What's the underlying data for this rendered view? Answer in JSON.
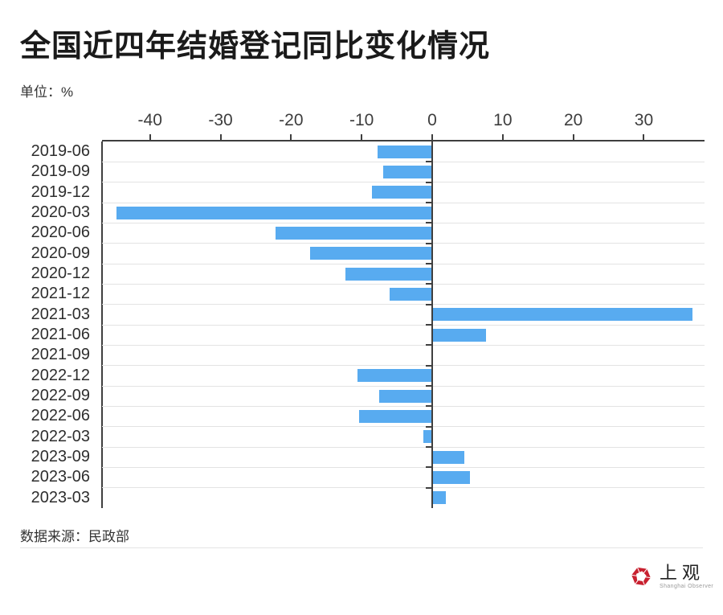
{
  "page": {
    "title": "全国近四年结婚登记同比变化情况",
    "unit_label": "单位：%",
    "source_label": "数据来源：民政部"
  },
  "logo": {
    "name_cn": "上观",
    "name_en": "Shanghai Observer",
    "brand_red": "#c8202f"
  },
  "colors": {
    "bar": "#58abf0",
    "axis": "#3f3f3f",
    "grid": "#e3e3e3",
    "title_text": "#1a1a1a",
    "body_text": "#333333"
  },
  "chart_data": {
    "type": "bar",
    "orientation": "horizontal",
    "title": "全国近四年结婚登记同比变化情况",
    "unit": "%",
    "categories": [
      "2019-06",
      "2019-09",
      "2019-12",
      "2020-03",
      "2020-06",
      "2020-09",
      "2020-12",
      "2021-12",
      "2021-03",
      "2021-06",
      "2021-09",
      "2022-12",
      "2022-09",
      "2022-06",
      "2022-03",
      "2023-09",
      "2023-06",
      "2023-03"
    ],
    "values": [
      -7.8,
      -6.9,
      -8.5,
      -44.7,
      -22.2,
      -17.3,
      -12.3,
      -6.0,
      36.9,
      7.6,
      -0.1,
      -10.6,
      -7.5,
      -10.4,
      -1.2,
      4.5,
      5.3,
      1.9
    ],
    "xlim": [
      -46.8,
      38.6
    ],
    "xticks": [
      -40,
      -30,
      -20,
      -10,
      0,
      10,
      20,
      30
    ],
    "xlabel": "",
    "ylabel": "",
    "grid": "row separators only, top axis line, dark zero baseline with stubs",
    "legend": "none",
    "bar_color": "#58abf0",
    "source": "数据来源：民政部"
  }
}
